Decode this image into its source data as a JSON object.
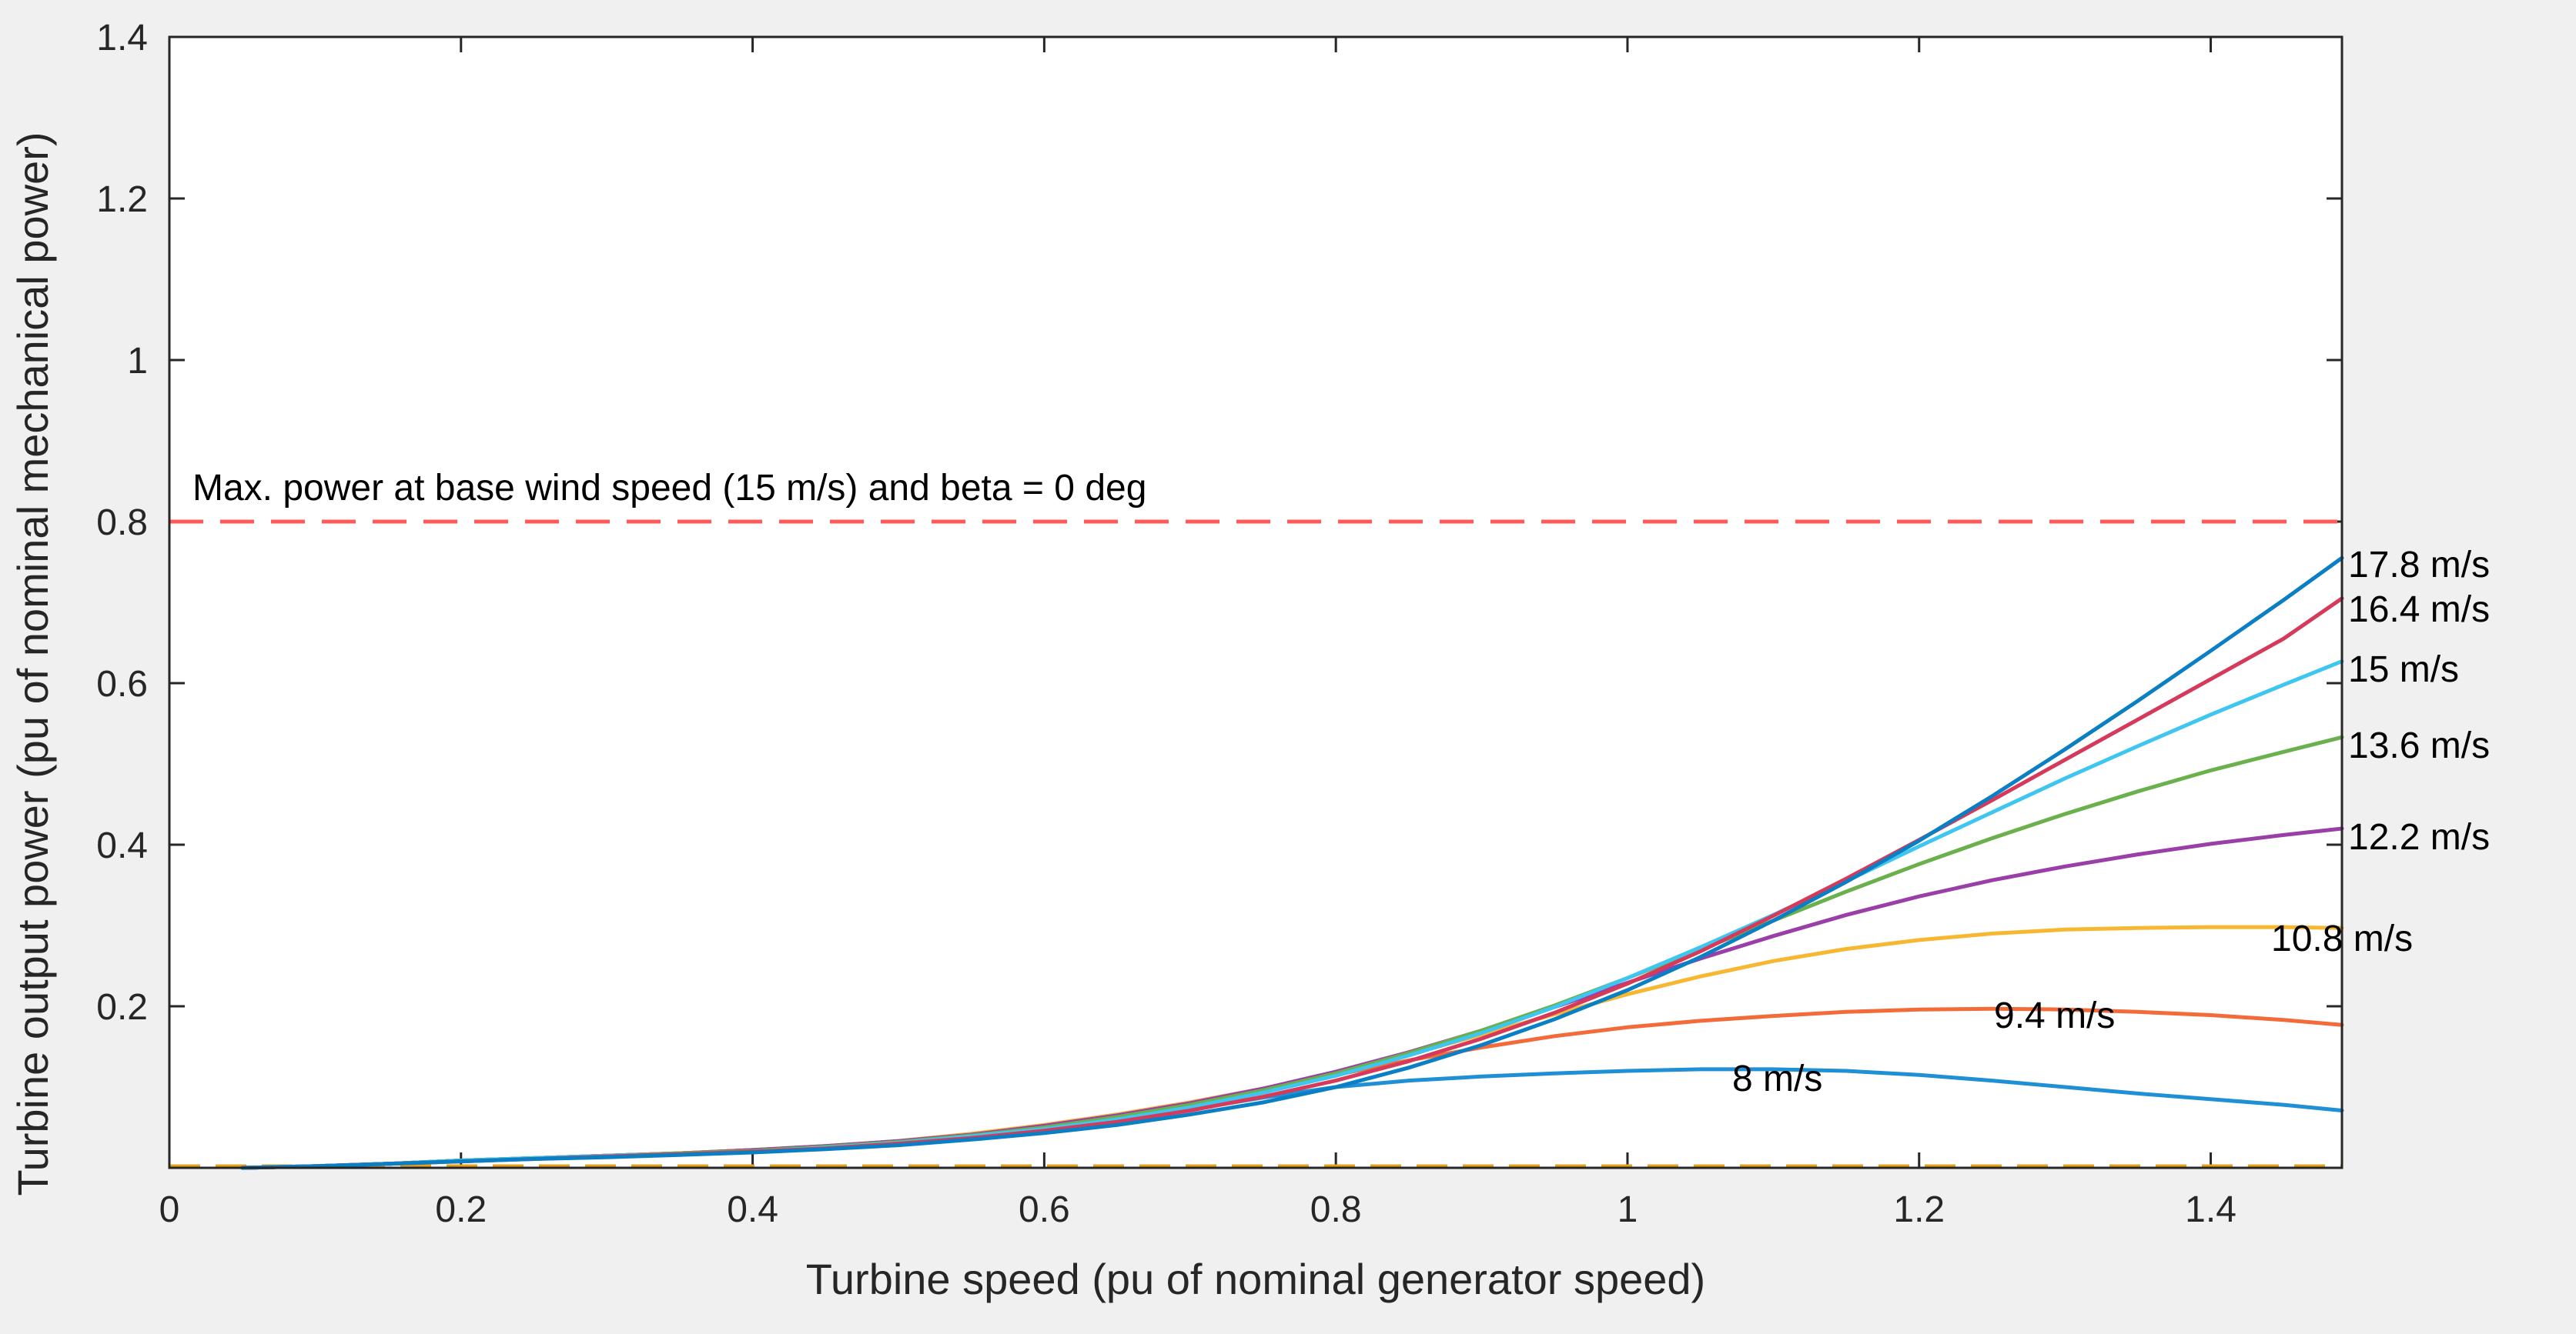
{
  "chart_data": {
    "type": "line",
    "title": "",
    "xlabel": "Turbine speed (pu of nominal generator speed)",
    "ylabel": "Turbine output power (pu of nominal mechanical power)",
    "xlim": [
      0,
      1.49
    ],
    "ylim": [
      0,
      1.4
    ],
    "xticks": [
      0,
      0.2,
      0.4,
      0.6,
      0.8,
      1,
      1.2,
      1.4
    ],
    "xtick_labels": [
      "0",
      "0.2",
      "0.4",
      "0.6",
      "0.8",
      "1",
      "1.2",
      "1.4"
    ],
    "yticks": [
      0.2,
      0.4,
      0.6,
      0.8,
      1,
      1.2,
      1.4
    ],
    "ytick_labels": [
      "0.2",
      "0.4",
      "0.6",
      "0.8",
      "1",
      "1.2",
      "1.4"
    ],
    "grid": false,
    "reference_line": {
      "y": 0.8,
      "color": "#ff5a5a",
      "style": "dashed",
      "label": "Max. power at base wind speed (15 m/s) and beta = 0 deg"
    },
    "x": [
      0.05,
      0.1,
      0.15,
      0.2,
      0.25,
      0.3,
      0.35,
      0.4,
      0.45,
      0.5,
      0.55,
      0.6,
      0.65,
      0.7,
      0.75,
      0.8,
      0.85,
      0.9,
      0.95,
      1.0,
      1.05,
      1.1,
      1.15,
      1.2,
      1.25,
      1.3,
      1.35,
      1.4,
      1.45,
      1.49
    ],
    "series": [
      {
        "name": "8 m/s",
        "label": "8 m/s",
        "color": "#1f8fd6",
        "values": [
          0.0,
          0.002,
          0.005,
          0.009,
          0.012,
          0.015,
          0.018,
          0.022,
          0.026,
          0.032,
          0.04,
          0.05,
          0.06,
          0.072,
          0.087,
          0.1,
          0.108,
          0.113,
          0.117,
          0.12,
          0.122,
          0.122,
          0.12,
          0.115,
          0.108,
          0.1,
          0.092,
          0.085,
          0.078,
          0.071
        ]
      },
      {
        "name": "9.4 m/s",
        "label": "9.4 m/s",
        "color": "#f26b38",
        "values": [
          0.0,
          0.002,
          0.005,
          0.009,
          0.012,
          0.015,
          0.018,
          0.022,
          0.027,
          0.033,
          0.042,
          0.053,
          0.066,
          0.081,
          0.098,
          0.115,
          0.133,
          0.149,
          0.163,
          0.174,
          0.182,
          0.188,
          0.193,
          0.196,
          0.197,
          0.196,
          0.193,
          0.189,
          0.183,
          0.177
        ]
      },
      {
        "name": "10.8 m/s",
        "label": "10.8 m/s",
        "color": "#f7b731",
        "values": [
          0.0,
          0.002,
          0.005,
          0.009,
          0.012,
          0.015,
          0.018,
          0.022,
          0.027,
          0.033,
          0.042,
          0.053,
          0.066,
          0.081,
          0.098,
          0.118,
          0.14,
          0.165,
          0.19,
          0.215,
          0.237,
          0.256,
          0.271,
          0.282,
          0.29,
          0.295,
          0.297,
          0.298,
          0.298,
          0.297
        ]
      },
      {
        "name": "12.2 m/s",
        "label": "12.2 m/s",
        "color": "#9b3fa8",
        "values": [
          0.0,
          0.002,
          0.005,
          0.009,
          0.012,
          0.015,
          0.018,
          0.022,
          0.027,
          0.033,
          0.041,
          0.052,
          0.065,
          0.08,
          0.098,
          0.119,
          0.143,
          0.17,
          0.199,
          0.229,
          0.259,
          0.287,
          0.313,
          0.336,
          0.356,
          0.373,
          0.388,
          0.401,
          0.412,
          0.42
        ]
      },
      {
        "name": "13.6 m/s",
        "label": "13.6 m/s",
        "color": "#6ab04c",
        "values": [
          0.0,
          0.002,
          0.005,
          0.009,
          0.012,
          0.015,
          0.018,
          0.021,
          0.026,
          0.032,
          0.04,
          0.05,
          0.063,
          0.078,
          0.096,
          0.117,
          0.142,
          0.17,
          0.201,
          0.235,
          0.27,
          0.306,
          0.342,
          0.376,
          0.408,
          0.438,
          0.466,
          0.492,
          0.515,
          0.533
        ]
      },
      {
        "name": "15 m/s",
        "label": "15 m/s",
        "color": "#3ec6f0",
        "values": [
          0.0,
          0.002,
          0.005,
          0.009,
          0.012,
          0.015,
          0.017,
          0.02,
          0.025,
          0.031,
          0.039,
          0.048,
          0.06,
          0.075,
          0.093,
          0.114,
          0.139,
          0.167,
          0.199,
          0.235,
          0.273,
          0.313,
          0.355,
          0.398,
          0.44,
          0.482,
          0.522,
          0.561,
          0.598,
          0.627
        ]
      },
      {
        "name": "16.4 m/s",
        "label": "16.4 m/s",
        "color": "#d63a5a",
        "values": [
          0.0,
          0.002,
          0.005,
          0.008,
          0.011,
          0.014,
          0.017,
          0.02,
          0.024,
          0.03,
          0.037,
          0.046,
          0.057,
          0.071,
          0.088,
          0.108,
          0.132,
          0.16,
          0.192,
          0.228,
          0.268,
          0.312,
          0.358,
          0.406,
          0.455,
          0.505,
          0.555,
          0.605,
          0.655,
          0.705
        ]
      },
      {
        "name": "17.8 m/s",
        "label": "17.8 m/s",
        "color": "#0b7fc4",
        "values": [
          0.0,
          0.002,
          0.005,
          0.008,
          0.011,
          0.013,
          0.016,
          0.019,
          0.023,
          0.028,
          0.035,
          0.043,
          0.053,
          0.066,
          0.081,
          0.1,
          0.124,
          0.152,
          0.184,
          0.22,
          0.261,
          0.306,
          0.354,
          0.405,
          0.46,
          0.518,
          0.578,
          0.64,
          0.703,
          0.755
        ]
      }
    ]
  }
}
